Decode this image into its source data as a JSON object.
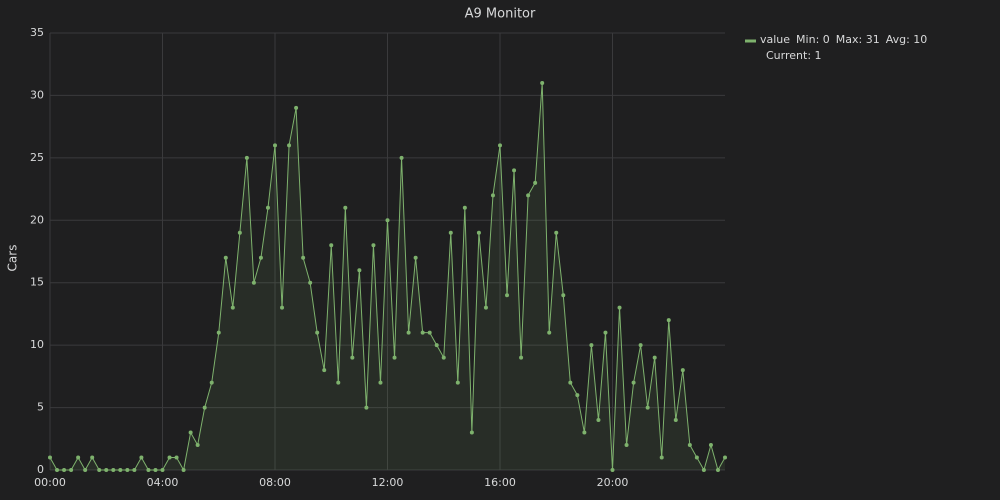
{
  "chart_data": {
    "type": "line",
    "title": "A9 Monitor",
    "y_label": "Cars",
    "x": [
      0,
      0.25,
      0.5,
      0.75,
      1,
      1.25,
      1.5,
      1.75,
      2,
      2.25,
      2.5,
      2.75,
      3,
      3.25,
      3.5,
      3.75,
      4,
      4.25,
      4.5,
      4.75,
      5,
      5.25,
      5.5,
      5.75,
      6,
      6.25,
      6.5,
      6.75,
      7,
      7.25,
      7.5,
      7.75,
      8,
      8.25,
      8.5,
      8.75,
      9,
      9.25,
      9.5,
      9.75,
      10,
      10.25,
      10.5,
      10.75,
      11,
      11.25,
      11.5,
      11.75,
      12,
      12.25,
      12.5,
      12.75,
      13,
      13.25,
      13.5,
      13.75,
      14,
      14.25,
      14.5,
      14.75,
      15,
      15.25,
      15.5,
      15.75,
      16,
      16.25,
      16.5,
      16.75,
      17,
      17.25,
      17.5,
      17.75,
      18,
      18.25,
      18.5,
      18.75,
      19,
      19.25,
      19.5,
      19.75,
      20,
      20.25,
      20.5,
      20.75,
      21,
      21.25,
      21.5,
      21.75,
      22,
      22.25,
      22.5,
      22.75,
      23,
      23.25,
      23.5,
      23.75,
      24
    ],
    "series": [
      {
        "name": "value",
        "color": "#7eb26d",
        "values": [
          1,
          0,
          0,
          0,
          1,
          0,
          1,
          0,
          0,
          0,
          0,
          0,
          0,
          1,
          0,
          0,
          0,
          1,
          1,
          0,
          3,
          2,
          5,
          7,
          11,
          17,
          13,
          19,
          25,
          15,
          17,
          21,
          26,
          13,
          26,
          29,
          17,
          15,
          11,
          8,
          18,
          7,
          21,
          9,
          16,
          5,
          18,
          7,
          20,
          9,
          25,
          11,
          17,
          11,
          11,
          10,
          9,
          19,
          7,
          21,
          3,
          19,
          13,
          22,
          26,
          14,
          24,
          9,
          22,
          23,
          31,
          11,
          19,
          14,
          7,
          6,
          3,
          10,
          4,
          11,
          0,
          13,
          2,
          7,
          10,
          5,
          9,
          1,
          12,
          4,
          8,
          2,
          1,
          0,
          2,
          0,
          1
        ]
      }
    ],
    "legend_stats": [
      "Min: 0",
      "Max: 31",
      "Avg: 10",
      "Current: 1"
    ],
    "legend": "right",
    "xlim": [
      0,
      24
    ],
    "xticks": [
      {
        "value": 0,
        "label": "00:00"
      },
      {
        "value": 4,
        "label": "04:00"
      },
      {
        "value": 8,
        "label": "08:00"
      },
      {
        "value": 12,
        "label": "12:00"
      },
      {
        "value": 16,
        "label": "16:00"
      },
      {
        "value": 20,
        "label": "20:00"
      }
    ],
    "ylim": [
      0,
      35
    ],
    "yticks": [
      0,
      5,
      10,
      15,
      20,
      25,
      30,
      35
    ],
    "grid": true
  }
}
